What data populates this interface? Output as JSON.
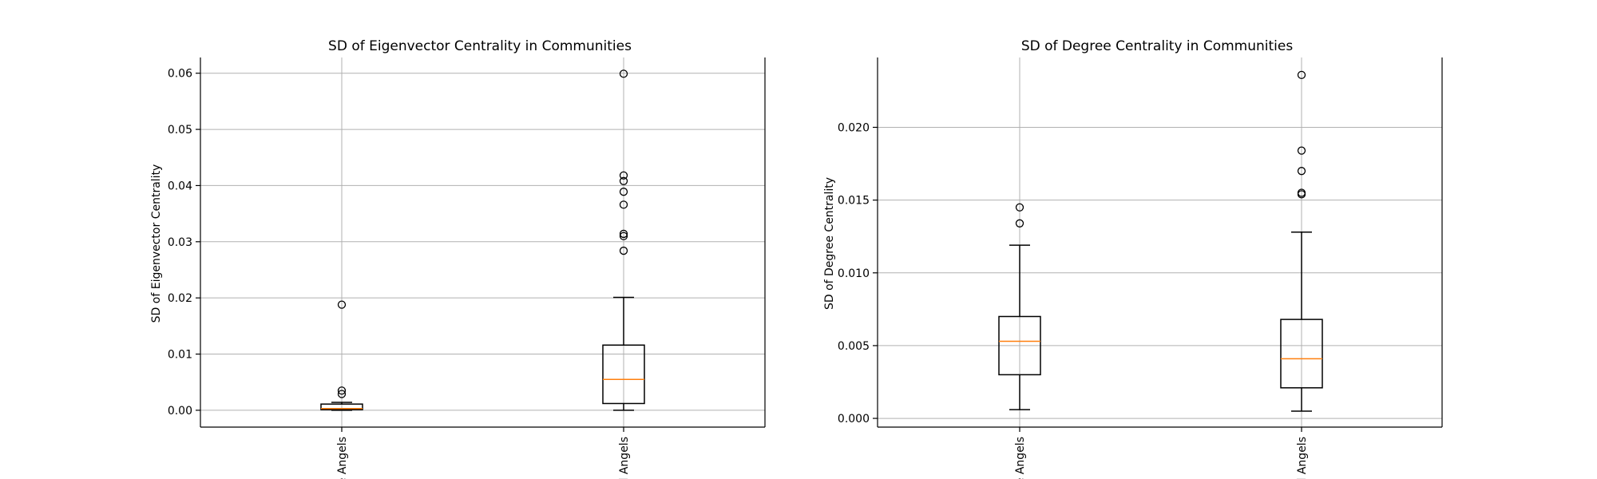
{
  "chart_data": [
    {
      "type": "box",
      "title": "SD of Eigenvector Centrality in Communities",
      "xlabel": "",
      "ylabel": "SD of Eigenvector Centrality",
      "ylim": [
        -0.003,
        0.0628
      ],
      "yticks": [
        0.0,
        0.01,
        0.02,
        0.03,
        0.04,
        0.05,
        0.06
      ],
      "ytick_labels": [
        "0.00",
        "0.01",
        "0.02",
        "0.03",
        "0.04",
        "0.05",
        "0.06"
      ],
      "grid": true,
      "categories": [
        "e Angels",
        "d Angels"
      ],
      "boxes": [
        {
          "whislo": 0.0,
          "q1": 0.0001,
          "med": 0.0003,
          "q3": 0.0011,
          "whishi": 0.0014,
          "fliers": [
            0.0188,
            0.0035,
            0.0029
          ]
        },
        {
          "whislo": 0.0,
          "q1": 0.0012,
          "med": 0.0055,
          "q3": 0.0116,
          "whishi": 0.0201,
          "fliers": [
            0.0599,
            0.0418,
            0.0408,
            0.0389,
            0.0366,
            0.0314,
            0.031,
            0.0284
          ]
        }
      ]
    },
    {
      "type": "box",
      "title": "SD of Degree Centrality in Communities",
      "xlabel": "",
      "ylabel": "SD of Degree Centrality",
      "ylim": [
        -0.0006,
        0.0248
      ],
      "yticks": [
        0.0,
        0.005,
        0.01,
        0.015,
        0.02
      ],
      "ytick_labels": [
        "0.000",
        "0.005",
        "0.010",
        "0.015",
        "0.020"
      ],
      "grid": true,
      "categories": [
        "e Angels",
        "d Angels"
      ],
      "boxes": [
        {
          "whislo": 0.0006,
          "q1": 0.003,
          "med": 0.0053,
          "q3": 0.007,
          "whishi": 0.0119,
          "fliers": [
            0.0145,
            0.0134
          ]
        },
        {
          "whislo": 0.0005,
          "q1": 0.0021,
          "med": 0.0041,
          "q3": 0.0068,
          "whishi": 0.0128,
          "fliers": [
            0.0236,
            0.0184,
            0.017,
            0.0155,
            0.0154
          ]
        }
      ]
    }
  ],
  "colors": {
    "box_line": "#000000",
    "median": "#ff7f0e",
    "grid": "#b0b0b0",
    "axis": "#000000",
    "background": "#ffffff"
  }
}
